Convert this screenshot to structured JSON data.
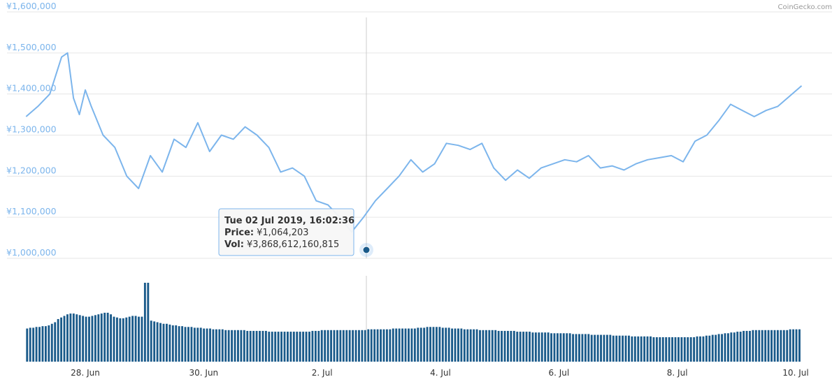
{
  "credit": "CoinGecko.com",
  "tooltip": {
    "date": "Tue 02 Jul 2019, 16:02:36",
    "price_label": "Price:",
    "price_value": "¥1,064,203",
    "vol_label": "Vol:",
    "vol_value": "¥3,868,612,160,815"
  },
  "colors": {
    "price_line": "#7cb5ec",
    "volume_bars": "#1a5a8a",
    "marker": "#1a5a8a",
    "grid": "#e6e6e6",
    "axis_label": "#7cb5ec",
    "crosshair": "#cccccc"
  },
  "chart_data": [
    {
      "type": "line",
      "name_hint": "price",
      "ylim": [
        1000000,
        1600000
      ],
      "ytick_values": [
        1000000,
        1100000,
        1200000,
        1300000,
        1400000,
        1500000,
        1600000
      ],
      "ytick_labels": [
        "¥1,000,000",
        "¥1,100,000",
        "¥1,200,000",
        "¥1,300,000",
        "¥1,400,000",
        "¥1,500,000",
        "¥1,600,000"
      ],
      "xlim": [
        -1.0,
        12.1
      ],
      "x_unit": "days offset from 28 Jun",
      "xtick_values": [
        0,
        2,
        4,
        6,
        8,
        10,
        12
      ],
      "xtick_labels": [
        "28. Jun",
        "30. Jun",
        "2. Jul",
        "4. Jul",
        "6. Jul",
        "8. Jul",
        "10. Jul"
      ],
      "grid": true,
      "x": [
        -1.0,
        -0.8,
        -0.6,
        -0.4,
        -0.3,
        -0.2,
        -0.1,
        0.0,
        0.1,
        0.3,
        0.5,
        0.7,
        0.9,
        1.1,
        1.3,
        1.5,
        1.7,
        1.9,
        2.1,
        2.3,
        2.5,
        2.7,
        2.9,
        3.1,
        3.3,
        3.5,
        3.7,
        3.9,
        4.1,
        4.3,
        4.5,
        4.7,
        4.9,
        5.1,
        5.3,
        5.5,
        5.7,
        5.9,
        6.1,
        6.3,
        6.5,
        6.7,
        6.9,
        7.1,
        7.3,
        7.5,
        7.7,
        7.9,
        8.1,
        8.3,
        8.5,
        8.7,
        8.9,
        9.1,
        9.3,
        9.5,
        9.7,
        9.9,
        10.1,
        10.3,
        10.5,
        10.7,
        10.9,
        11.1,
        11.3,
        11.5,
        11.7,
        11.9,
        12.1
      ],
      "values": [
        1345000,
        1370000,
        1400000,
        1490000,
        1500000,
        1390000,
        1350000,
        1410000,
        1370000,
        1300000,
        1270000,
        1200000,
        1170000,
        1250000,
        1210000,
        1290000,
        1270000,
        1330000,
        1260000,
        1300000,
        1290000,
        1320000,
        1300000,
        1270000,
        1210000,
        1220000,
        1200000,
        1140000,
        1130000,
        1100000,
        1064203,
        1100000,
        1140000,
        1170000,
        1200000,
        1240000,
        1210000,
        1230000,
        1280000,
        1275000,
        1265000,
        1280000,
        1220000,
        1190000,
        1215000,
        1195000,
        1220000,
        1230000,
        1240000,
        1235000,
        1250000,
        1220000,
        1225000,
        1215000,
        1230000,
        1240000,
        1245000,
        1250000,
        1235000,
        1285000,
        1300000,
        1335000,
        1375000,
        1360000,
        1345000,
        1360000,
        1370000,
        1395000,
        1420000
      ]
    },
    {
      "type": "bar",
      "name_hint": "volume",
      "ylim": [
        0,
        100
      ],
      "y_unit": "relative volume (no axis printed)",
      "x_start": -1.0,
      "x_end": 12.1,
      "values": [
        42,
        43,
        43,
        44,
        44,
        45,
        45,
        46,
        48,
        50,
        54,
        56,
        58,
        60,
        61,
        61,
        60,
        59,
        58,
        57,
        57,
        58,
        59,
        60,
        61,
        62,
        62,
        60,
        57,
        56,
        55,
        55,
        56,
        57,
        58,
        58,
        57,
        57,
        100,
        100,
        52,
        51,
        50,
        49,
        48,
        48,
        47,
        46,
        46,
        45,
        45,
        44,
        44,
        44,
        43,
        43,
        43,
        42,
        42,
        42,
        41,
        41,
        41,
        41,
        40,
        40,
        40,
        40,
        40,
        40,
        40,
        39,
        39,
        39,
        39,
        39,
        39,
        39,
        38,
        38,
        38,
        38,
        38,
        38,
        38,
        38,
        38,
        38,
        38,
        38,
        38,
        38,
        39,
        39,
        39,
        40,
        40,
        40,
        40,
        40,
        40,
        40,
        40,
        40,
        40,
        40,
        40,
        40,
        40,
        40,
        41,
        41,
        41,
        41,
        41,
        41,
        41,
        41,
        42,
        42,
        42,
        42,
        42,
        42,
        42,
        42,
        43,
        43,
        43,
        44,
        44,
        44,
        44,
        44,
        43,
        43,
        43,
        42,
        42,
        42,
        42,
        41,
        41,
        41,
        41,
        41,
        40,
        40,
        40,
        40,
        40,
        40,
        39,
        39,
        39,
        39,
        39,
        39,
        38,
        38,
        38,
        38,
        38,
        37,
        37,
        37,
        37,
        37,
        37,
        36,
        36,
        36,
        36,
        36,
        36,
        36,
        35,
        35,
        35,
        35,
        35,
        35,
        34,
        34,
        34,
        34,
        34,
        34,
        34,
        33,
        33,
        33,
        33,
        33,
        33,
        32,
        32,
        32,
        32,
        32,
        32,
        32,
        31,
        31,
        31,
        31,
        31,
        31,
        31,
        31,
        31,
        31,
        31,
        31,
        31,
        31,
        32,
        32,
        32,
        33,
        33,
        34,
        34,
        35,
        35,
        36,
        36,
        37,
        37,
        38,
        38,
        39,
        39,
        39,
        40,
        40,
        40,
        40,
        40,
        40,
        40,
        40,
        40,
        40,
        40,
        40,
        41,
        41,
        41,
        41
      ]
    }
  ]
}
